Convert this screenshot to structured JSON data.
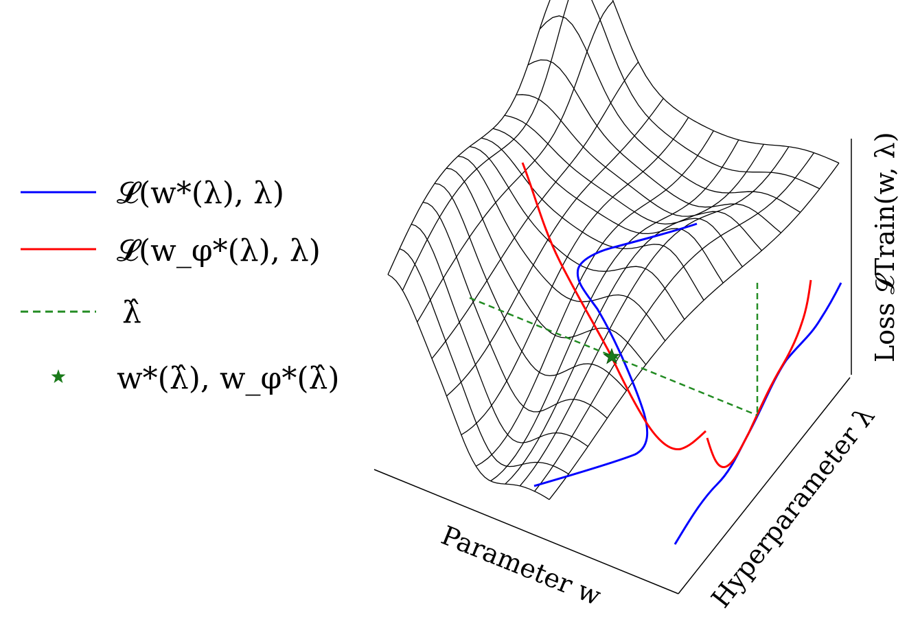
{
  "legend": {
    "items": [
      {
        "id": "loss-best-response",
        "text": "𝓛(w*(λ), λ)",
        "marker": "line",
        "color": "#0000ff"
      },
      {
        "id": "loss-approx-response",
        "text": "𝓛(w_φ*(λ), λ)",
        "marker": "line",
        "color": "#ff0000"
      },
      {
        "id": "lambda-hat",
        "text": "λ̂",
        "marker": "dashed",
        "color": "#228b22"
      },
      {
        "id": "optimum",
        "text": "w*(λ̂), w_φ*(λ̂)",
        "marker": "star",
        "color": "#1a7a1a"
      }
    ]
  },
  "axes": {
    "x_label": "Parameter w",
    "y_label": "Hyperparameter λ",
    "z_label": "Loss 𝓛Train(w, λ)"
  },
  "colors": {
    "surface": "#000000",
    "blue": "#0000ff",
    "red": "#ff0000",
    "green": "#228b22"
  }
}
